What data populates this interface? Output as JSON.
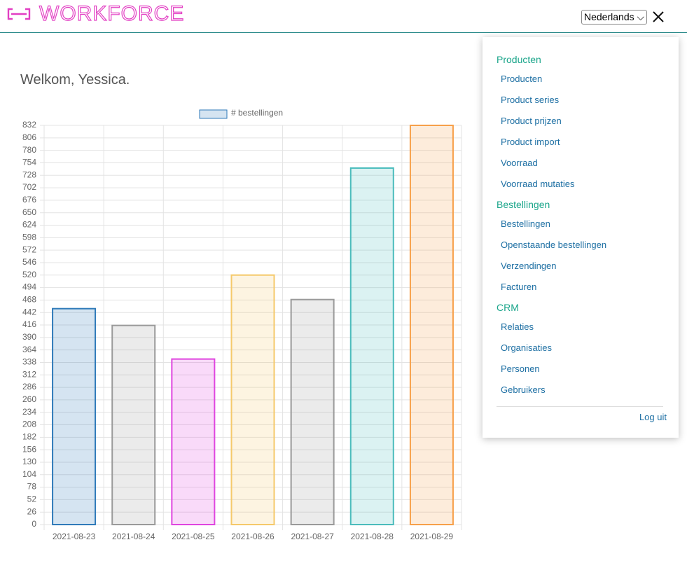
{
  "header": {
    "logo": "WORKFORCE",
    "language": "Nederlands"
  },
  "greeting": "Welkom, Yessica.",
  "chart_data": {
    "type": "bar",
    "categories": [
      "2021-08-23",
      "2021-08-24",
      "2021-08-25",
      "2021-08-26",
      "2021-08-27",
      "2021-08-28",
      "2021-08-29"
    ],
    "series": [
      {
        "name": "# bestellingen",
        "color": "#2f7ab9",
        "colors": [
          "#2f7ab9",
          "#9a9a9a",
          "#df45df",
          "#f5c96a",
          "#9a9a9a",
          "#4bbcbc",
          "#f7a04a"
        ],
        "values": [
          450,
          415,
          345,
          520,
          469,
          743,
          832
        ]
      }
    ],
    "ylim": [
      0,
      832
    ],
    "yticks": [
      0,
      26,
      52,
      78,
      104,
      130,
      156,
      182,
      208,
      234,
      260,
      286,
      312,
      338,
      364,
      390,
      416,
      442,
      468,
      494,
      520,
      546,
      572,
      598,
      624,
      650,
      676,
      702,
      728,
      754,
      780,
      806,
      832
    ],
    "grid": true,
    "legend": "top"
  },
  "menu": {
    "sections": [
      {
        "title": "Producten",
        "items": [
          "Producten",
          "Product series",
          "Product prijzen",
          "Product import",
          "Voorraad",
          "Voorraad mutaties"
        ]
      },
      {
        "title": "Bestellingen",
        "items": [
          "Bestellingen",
          "Openstaande bestellingen",
          "Verzendingen",
          "Facturen"
        ]
      },
      {
        "title": "CRM",
        "items": [
          "Relaties",
          "Organisaties",
          "Personen",
          "Gebruikers"
        ]
      }
    ],
    "logout": "Log uit"
  }
}
